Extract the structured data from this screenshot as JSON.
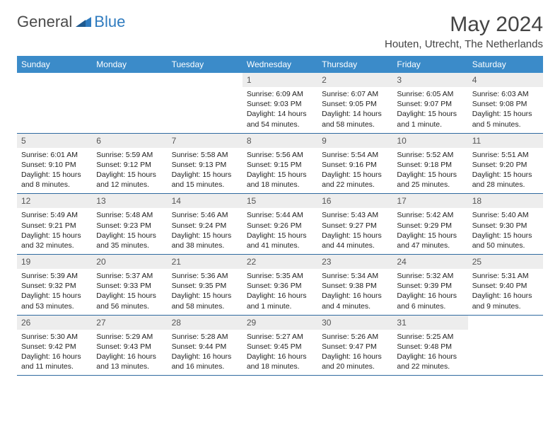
{
  "logo": {
    "text1": "General",
    "text2": "Blue"
  },
  "title": "May 2024",
  "location": "Houten, Utrecht, The Netherlands",
  "colors": {
    "header_bg": "#3b8bc9",
    "header_text": "#ffffff",
    "daynum_bg": "#ededed",
    "daynum_text": "#555555",
    "body_text": "#222222",
    "border": "#2f6aa0",
    "logo_gray": "#6b6b6b",
    "logo_blue": "#2f7bbf"
  },
  "weekdays": [
    "Sunday",
    "Monday",
    "Tuesday",
    "Wednesday",
    "Thursday",
    "Friday",
    "Saturday"
  ],
  "weeks": [
    [
      null,
      null,
      null,
      {
        "n": "1",
        "sr": "6:09 AM",
        "ss": "9:03 PM",
        "dl": "14 hours and 54 minutes."
      },
      {
        "n": "2",
        "sr": "6:07 AM",
        "ss": "9:05 PM",
        "dl": "14 hours and 58 minutes."
      },
      {
        "n": "3",
        "sr": "6:05 AM",
        "ss": "9:07 PM",
        "dl": "15 hours and 1 minute."
      },
      {
        "n": "4",
        "sr": "6:03 AM",
        "ss": "9:08 PM",
        "dl": "15 hours and 5 minutes."
      }
    ],
    [
      {
        "n": "5",
        "sr": "6:01 AM",
        "ss": "9:10 PM",
        "dl": "15 hours and 8 minutes."
      },
      {
        "n": "6",
        "sr": "5:59 AM",
        "ss": "9:12 PM",
        "dl": "15 hours and 12 minutes."
      },
      {
        "n": "7",
        "sr": "5:58 AM",
        "ss": "9:13 PM",
        "dl": "15 hours and 15 minutes."
      },
      {
        "n": "8",
        "sr": "5:56 AM",
        "ss": "9:15 PM",
        "dl": "15 hours and 18 minutes."
      },
      {
        "n": "9",
        "sr": "5:54 AM",
        "ss": "9:16 PM",
        "dl": "15 hours and 22 minutes."
      },
      {
        "n": "10",
        "sr": "5:52 AM",
        "ss": "9:18 PM",
        "dl": "15 hours and 25 minutes."
      },
      {
        "n": "11",
        "sr": "5:51 AM",
        "ss": "9:20 PM",
        "dl": "15 hours and 28 minutes."
      }
    ],
    [
      {
        "n": "12",
        "sr": "5:49 AM",
        "ss": "9:21 PM",
        "dl": "15 hours and 32 minutes."
      },
      {
        "n": "13",
        "sr": "5:48 AM",
        "ss": "9:23 PM",
        "dl": "15 hours and 35 minutes."
      },
      {
        "n": "14",
        "sr": "5:46 AM",
        "ss": "9:24 PM",
        "dl": "15 hours and 38 minutes."
      },
      {
        "n": "15",
        "sr": "5:44 AM",
        "ss": "9:26 PM",
        "dl": "15 hours and 41 minutes."
      },
      {
        "n": "16",
        "sr": "5:43 AM",
        "ss": "9:27 PM",
        "dl": "15 hours and 44 minutes."
      },
      {
        "n": "17",
        "sr": "5:42 AM",
        "ss": "9:29 PM",
        "dl": "15 hours and 47 minutes."
      },
      {
        "n": "18",
        "sr": "5:40 AM",
        "ss": "9:30 PM",
        "dl": "15 hours and 50 minutes."
      }
    ],
    [
      {
        "n": "19",
        "sr": "5:39 AM",
        "ss": "9:32 PM",
        "dl": "15 hours and 53 minutes."
      },
      {
        "n": "20",
        "sr": "5:37 AM",
        "ss": "9:33 PM",
        "dl": "15 hours and 56 minutes."
      },
      {
        "n": "21",
        "sr": "5:36 AM",
        "ss": "9:35 PM",
        "dl": "15 hours and 58 minutes."
      },
      {
        "n": "22",
        "sr": "5:35 AM",
        "ss": "9:36 PM",
        "dl": "16 hours and 1 minute."
      },
      {
        "n": "23",
        "sr": "5:34 AM",
        "ss": "9:38 PM",
        "dl": "16 hours and 4 minutes."
      },
      {
        "n": "24",
        "sr": "5:32 AM",
        "ss": "9:39 PM",
        "dl": "16 hours and 6 minutes."
      },
      {
        "n": "25",
        "sr": "5:31 AM",
        "ss": "9:40 PM",
        "dl": "16 hours and 9 minutes."
      }
    ],
    [
      {
        "n": "26",
        "sr": "5:30 AM",
        "ss": "9:42 PM",
        "dl": "16 hours and 11 minutes."
      },
      {
        "n": "27",
        "sr": "5:29 AM",
        "ss": "9:43 PM",
        "dl": "16 hours and 13 minutes."
      },
      {
        "n": "28",
        "sr": "5:28 AM",
        "ss": "9:44 PM",
        "dl": "16 hours and 16 minutes."
      },
      {
        "n": "29",
        "sr": "5:27 AM",
        "ss": "9:45 PM",
        "dl": "16 hours and 18 minutes."
      },
      {
        "n": "30",
        "sr": "5:26 AM",
        "ss": "9:47 PM",
        "dl": "16 hours and 20 minutes."
      },
      {
        "n": "31",
        "sr": "5:25 AM",
        "ss": "9:48 PM",
        "dl": "16 hours and 22 minutes."
      },
      null
    ]
  ],
  "labels": {
    "sunrise": "Sunrise:",
    "sunset": "Sunset:",
    "daylight": "Daylight:"
  }
}
